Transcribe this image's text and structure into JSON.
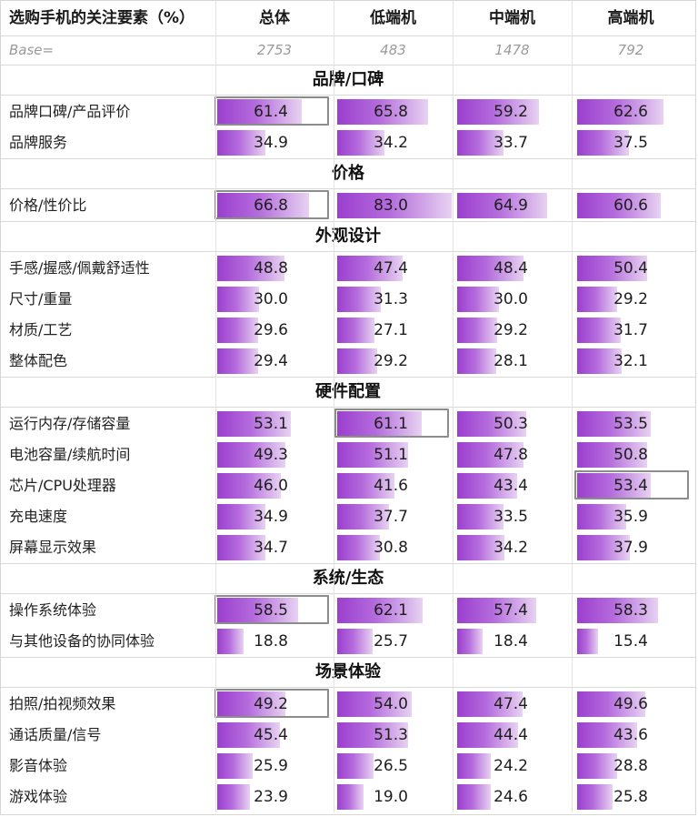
{
  "chart_data": {
    "type": "table",
    "header": {
      "label": "选购手机的关注要素（%）",
      "columns": [
        "总体",
        "低端机",
        "中端机",
        "高端机"
      ]
    },
    "base": {
      "label": "Base=",
      "values": [
        "2753",
        "483",
        "1478",
        "792"
      ]
    },
    "scale_max": 83,
    "categories": [
      {
        "title": "品牌/口碑",
        "items": [
          {
            "label": "品牌口碑/产品评价",
            "values": [
              61.4,
              65.8,
              59.2,
              62.6
            ],
            "display": [
              "61.4",
              "65.8",
              "59.2",
              "62.6"
            ],
            "highlight": [
              0
            ]
          },
          {
            "label": "品牌服务",
            "values": [
              34.9,
              34.2,
              33.7,
              37.5
            ],
            "display": [
              "34.9",
              "34.2",
              "33.7",
              "37.5"
            ],
            "highlight": []
          }
        ]
      },
      {
        "title": "价格",
        "items": [
          {
            "label": "价格/性价比",
            "values": [
              66.8,
              83.0,
              64.9,
              60.6
            ],
            "display": [
              "66.8",
              "83.0",
              "64.9",
              "60.6"
            ],
            "highlight": [
              0
            ]
          }
        ]
      },
      {
        "title": "外观设计",
        "items": [
          {
            "label": "手感/握感/佩戴舒适性",
            "values": [
              48.8,
              47.4,
              48.4,
              50.4
            ],
            "display": [
              "48.8",
              "47.4",
              "48.4",
              "50.4"
            ],
            "highlight": []
          },
          {
            "label": "尺寸/重量",
            "values": [
              30.0,
              31.3,
              30.0,
              29.2
            ],
            "display": [
              "30.0",
              "31.3",
              "30.0",
              "29.2"
            ],
            "highlight": []
          },
          {
            "label": "材质/工艺",
            "values": [
              29.6,
              27.1,
              29.2,
              31.7
            ],
            "display": [
              "29.6",
              "27.1",
              "29.2",
              "31.7"
            ],
            "highlight": []
          },
          {
            "label": "整体配色",
            "values": [
              29.4,
              29.2,
              28.1,
              32.1
            ],
            "display": [
              "29.4",
              "29.2",
              "28.1",
              "32.1"
            ],
            "highlight": []
          }
        ]
      },
      {
        "title": "硬件配置",
        "items": [
          {
            "label": "运行内存/存储容量",
            "values": [
              53.1,
              61.1,
              50.3,
              53.5
            ],
            "display": [
              "53.1",
              "61.1",
              "50.3",
              "53.5"
            ],
            "highlight": [
              1
            ]
          },
          {
            "label": "电池容量/续航时间",
            "values": [
              49.3,
              51.1,
              47.8,
              50.8
            ],
            "display": [
              "49.3",
              "51.1",
              "47.8",
              "50.8"
            ],
            "highlight": []
          },
          {
            "label": "芯片/CPU处理器",
            "values": [
              46.0,
              41.6,
              43.4,
              53.4
            ],
            "display": [
              "46.0",
              "41.6",
              "43.4",
              "53.4"
            ],
            "highlight": [
              3
            ]
          },
          {
            "label": "充电速度",
            "values": [
              34.9,
              37.7,
              33.5,
              35.9
            ],
            "display": [
              "34.9",
              "37.7",
              "33.5",
              "35.9"
            ],
            "highlight": []
          },
          {
            "label": "屏幕显示效果",
            "values": [
              34.7,
              30.8,
              34.2,
              37.9
            ],
            "display": [
              "34.7",
              "30.8",
              "34.2",
              "37.9"
            ],
            "highlight": []
          }
        ]
      },
      {
        "title": "系统/生态",
        "items": [
          {
            "label": "操作系统体验",
            "values": [
              58.5,
              62.1,
              57.4,
              58.3
            ],
            "display": [
              "58.5",
              "62.1",
              "57.4",
              "58.3"
            ],
            "highlight": [
              0
            ]
          },
          {
            "label": "与其他设备的协同体验",
            "values": [
              18.8,
              25.7,
              18.4,
              15.4
            ],
            "display": [
              "18.8",
              "25.7",
              "18.4",
              "15.4"
            ],
            "highlight": []
          }
        ]
      },
      {
        "title": "场景体验",
        "items": [
          {
            "label": "拍照/拍视频效果",
            "values": [
              49.2,
              54.0,
              47.4,
              49.6
            ],
            "display": [
              "49.2",
              "54.0",
              "47.4",
              "49.6"
            ],
            "highlight": [
              0
            ]
          },
          {
            "label": "通话质量/信号",
            "values": [
              45.4,
              51.3,
              44.4,
              43.6
            ],
            "display": [
              "45.4",
              "51.3",
              "44.4",
              "43.6"
            ],
            "highlight": []
          },
          {
            "label": "影音体验",
            "values": [
              25.9,
              26.5,
              24.2,
              28.8
            ],
            "display": [
              "25.9",
              "26.5",
              "24.2",
              "28.8"
            ],
            "highlight": []
          },
          {
            "label": "游戏体验",
            "values": [
              23.9,
              19.0,
              24.6,
              25.8
            ],
            "display": [
              "23.9",
              "19.0",
              "24.6",
              "25.8"
            ],
            "highlight": []
          }
        ]
      }
    ]
  }
}
